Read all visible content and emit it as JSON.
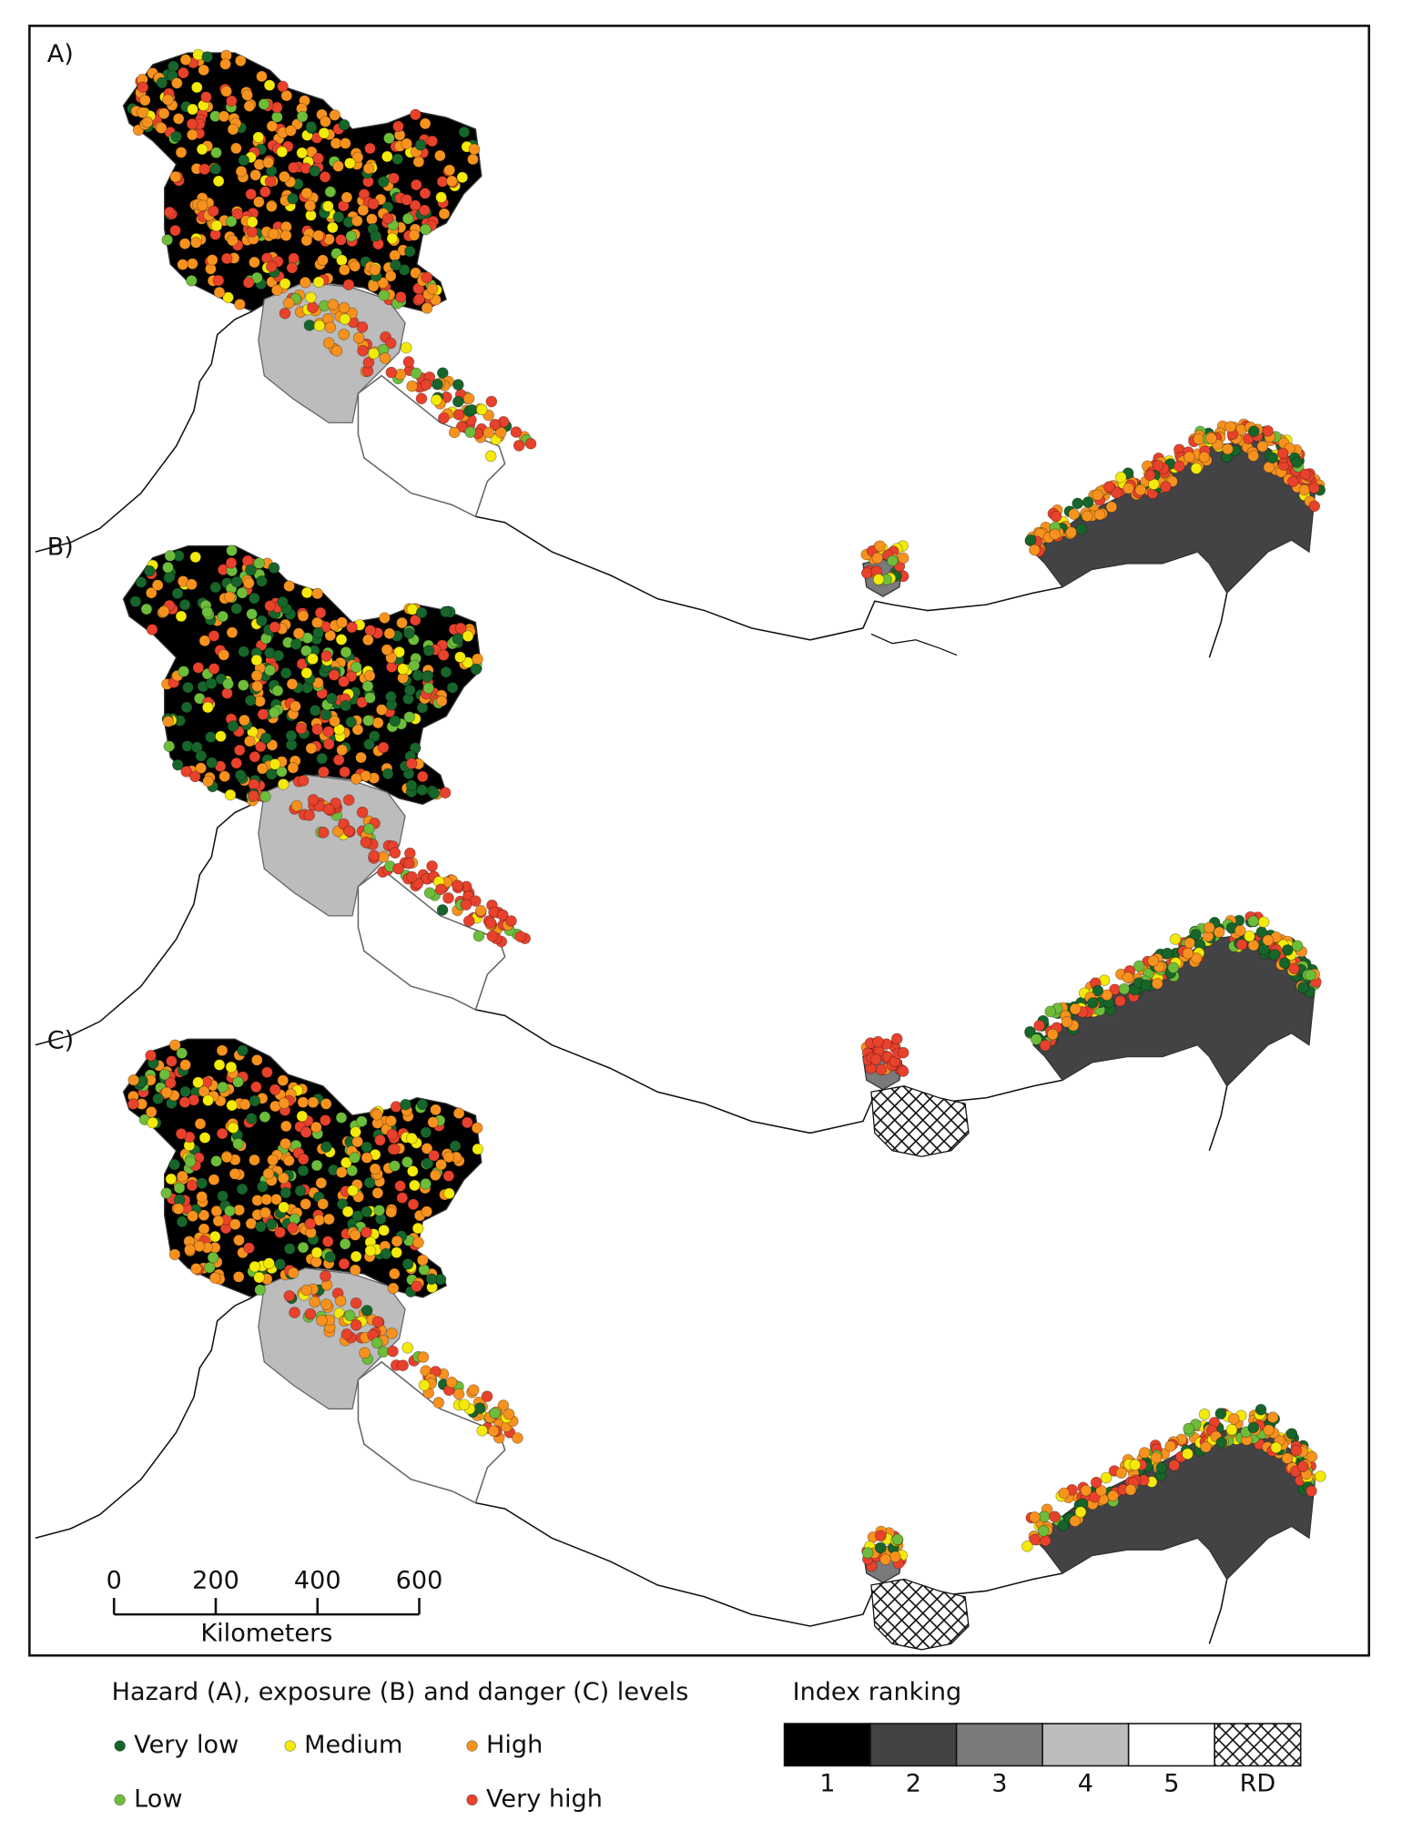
{
  "panels": [
    {
      "label": "A)"
    },
    {
      "label": "B)"
    },
    {
      "label": "C)"
    }
  ],
  "scale_bar": {
    "ticks": [
      0,
      200,
      400,
      600
    ],
    "unit": "Kilometers"
  },
  "legend": {
    "title": "Hazard (A), exposure (B) and danger (C) levels",
    "items": [
      {
        "label": "Very low",
        "color": "#17652a"
      },
      {
        "label": "Medium",
        "color": "#f4ea0a"
      },
      {
        "label": "High",
        "color": "#f7921e"
      },
      {
        "label": "Low",
        "color": "#6dbd3b"
      },
      {
        "label": "Very high",
        "color": "#e8412c"
      }
    ]
  },
  "index_ranking": {
    "title": "Index ranking",
    "classes": [
      {
        "label": "1",
        "fill": "#000000"
      },
      {
        "label": "2",
        "fill": "#434345"
      },
      {
        "label": "3",
        "fill": "#7a7a7c"
      },
      {
        "label": "4",
        "fill": "#bcbcbc"
      },
      {
        "label": "5",
        "fill": "#ffffff"
      },
      {
        "label": "RD",
        "fill": "hatch"
      }
    ]
  }
}
